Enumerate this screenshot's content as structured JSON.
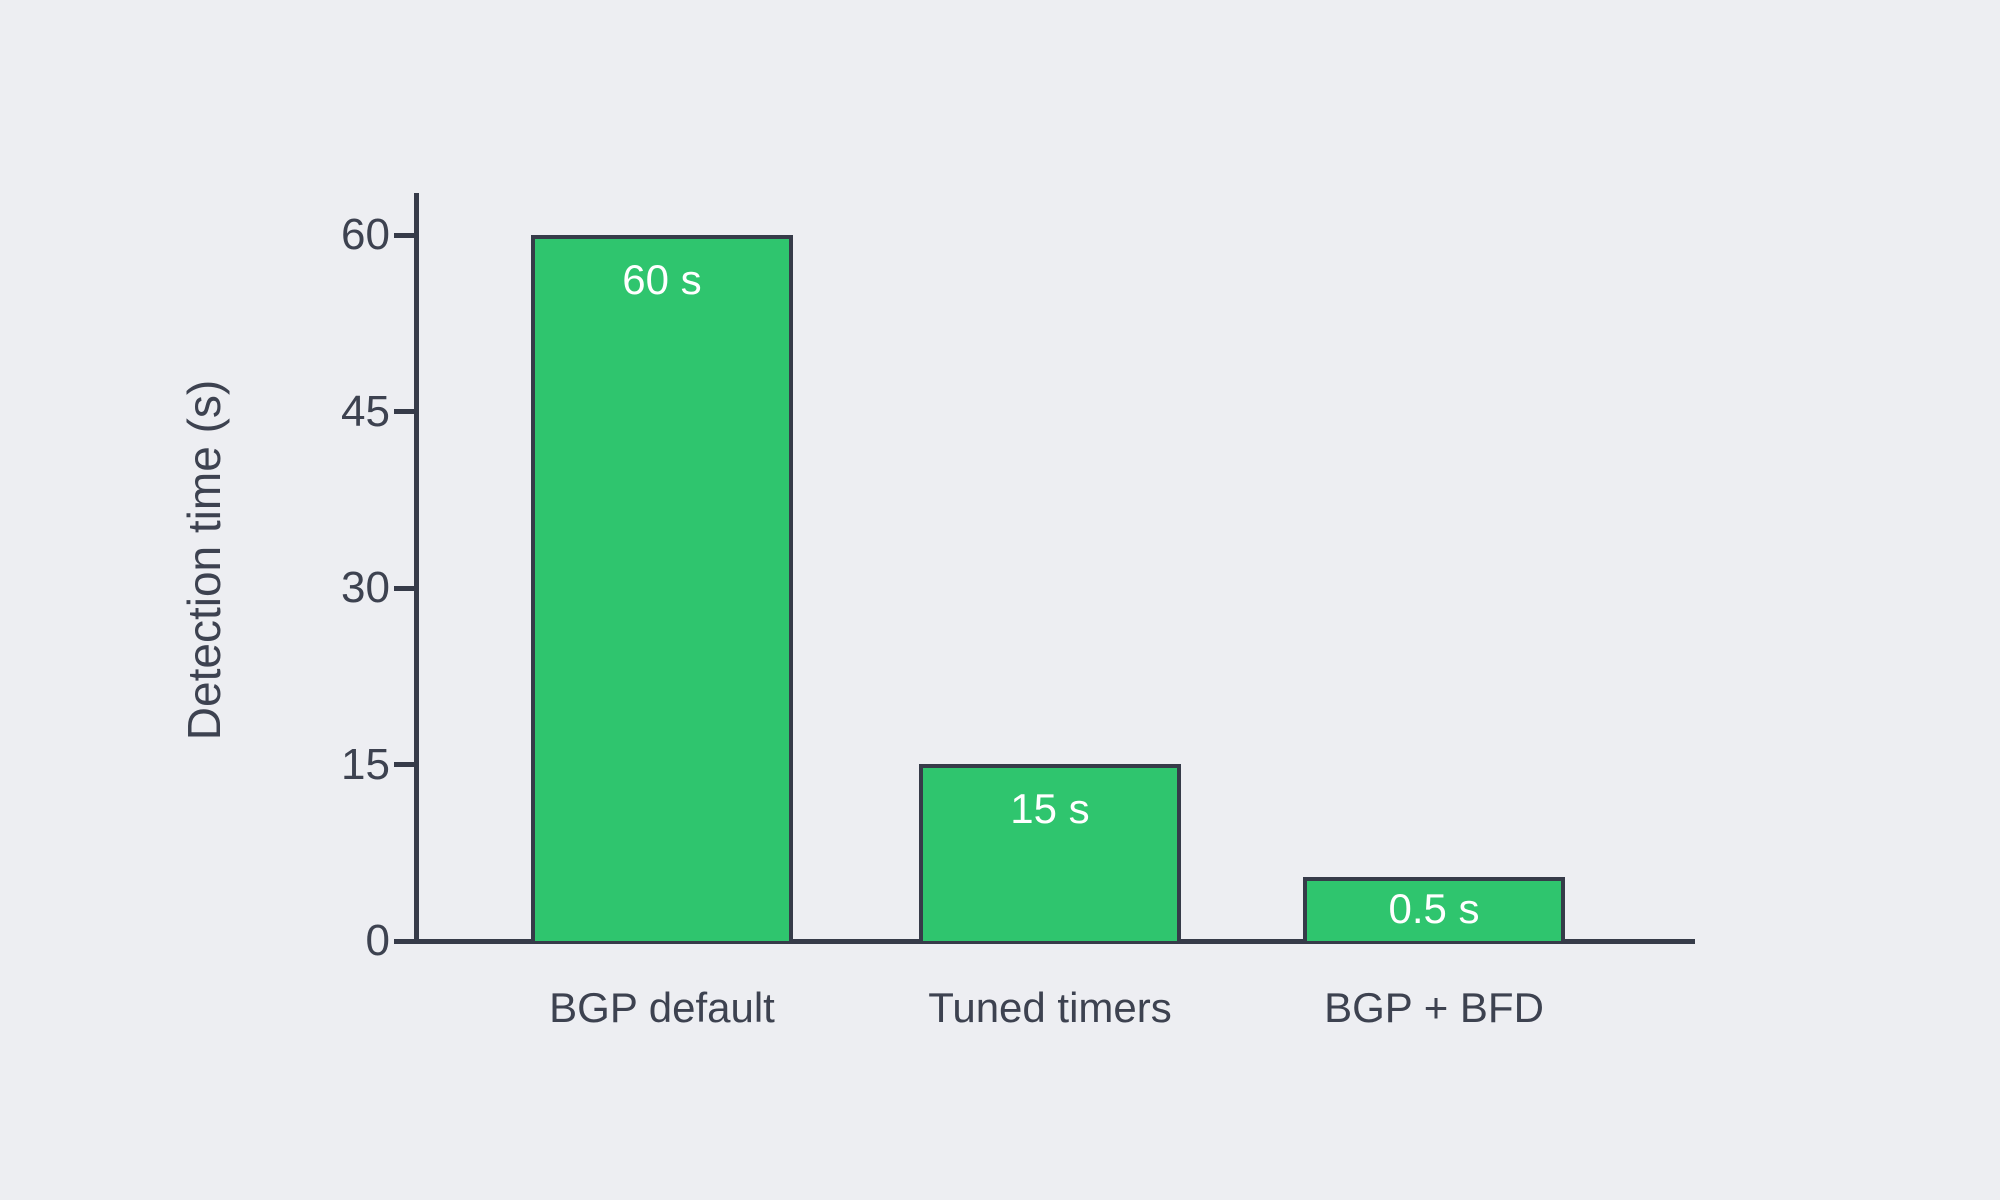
{
  "chart_data": {
    "type": "bar",
    "title": "",
    "categories": [
      "BGP default",
      "Tuned timers",
      "BGP + BFD"
    ],
    "values": [
      60,
      15,
      0.5
    ],
    "bar_value_labels": [
      "60 s",
      "15 s",
      "0.5 s"
    ],
    "xlabel": "",
    "ylabel": "Detection time (s)",
    "ylim": [
      0,
      60
    ],
    "yticks": [
      0,
      15,
      30,
      45,
      60
    ],
    "ytick_labels": [
      "0",
      "15",
      "30",
      "45",
      "60"
    ],
    "grid": false,
    "legend_position": "none",
    "colors": {
      "bar_fill": "#2fc56e",
      "bar_border": "#363b49",
      "axis": "#363b49",
      "tick_text": "#3d4250",
      "value_label_text": "#ffffff",
      "background": "#edeef2"
    }
  }
}
